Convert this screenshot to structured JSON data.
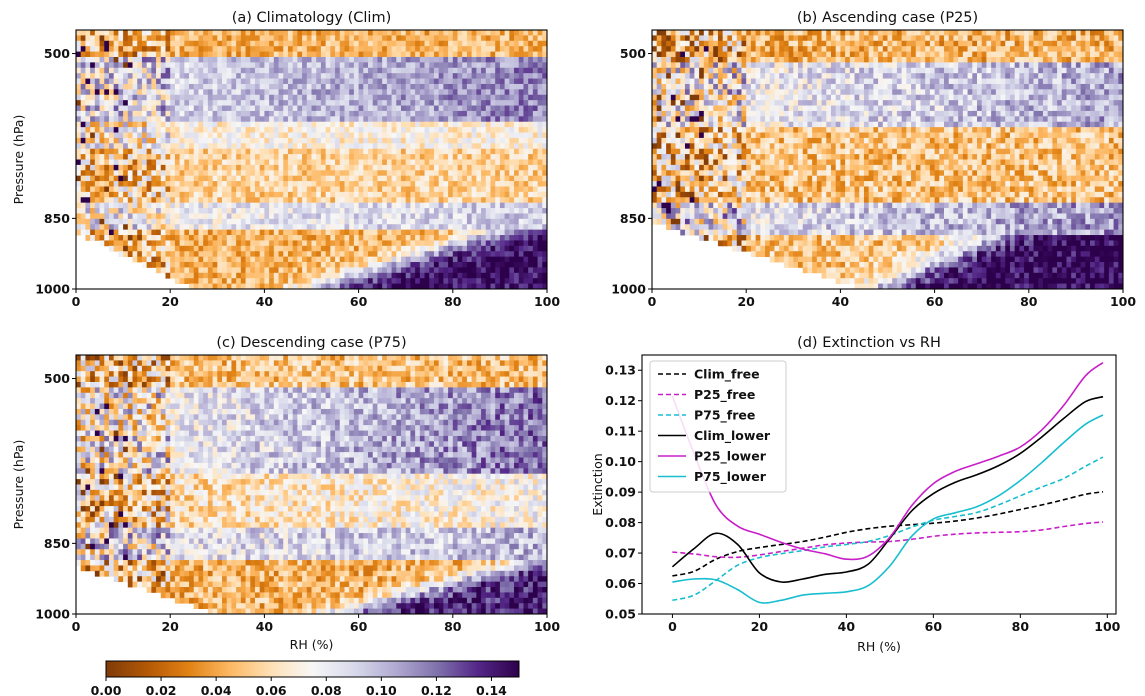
{
  "colorbar": {
    "colormap": "PuOr",
    "range": [
      0.0,
      0.15
    ],
    "tick_labels": [
      "0.00",
      "0.02",
      "0.04",
      "0.06",
      "0.08",
      "0.10",
      "0.12",
      "0.14"
    ],
    "tick_values": [
      0.0,
      0.02,
      0.04,
      0.06,
      0.08,
      0.1,
      0.12,
      0.14
    ]
  },
  "chart_data": [
    {
      "type": "heatmap",
      "title": "(a) Climatology (Clim)",
      "xlabel": "",
      "ylabel": "Pressure (hPa)",
      "xlim": [
        0,
        100
      ],
      "ylim": [
        1000,
        450
      ],
      "x_ticks": [
        "0",
        "20",
        "40",
        "60",
        "80",
        "100"
      ],
      "y_ticks": [
        "500",
        "850",
        "1000"
      ],
      "y_tick_values": [
        500,
        850,
        1000
      ],
      "noise": 0.018,
      "bands": [
        {
          "p": [
            450,
            510
          ],
          "value": 0.045
        },
        {
          "p": [
            510,
            640
          ],
          "value": 0.085,
          "rh_gradient": 0.03
        },
        {
          "p": [
            640,
            700
          ],
          "value": 0.07
        },
        {
          "p": [
            700,
            820
          ],
          "value": 0.055
        },
        {
          "p": [
            820,
            870
          ],
          "value": 0.075,
          "rh_gradient": 0.02
        },
        {
          "p": [
            870,
            1000
          ],
          "value": 0.045,
          "moist_value": 0.145,
          "moist_rh_start": [
            50,
            92
          ]
        }
      ],
      "empty_region": {
        "rh_max_at_1000": 25,
        "p_start": 880
      }
    },
    {
      "type": "heatmap",
      "title": "(b) Ascending case (P25)",
      "xlabel": "",
      "ylabel": "",
      "xlim": [
        0,
        100
      ],
      "ylim": [
        1000,
        450
      ],
      "x_ticks": [
        "0",
        "20",
        "40",
        "60",
        "80",
        "100"
      ],
      "y_ticks": [
        "500",
        "850",
        "1000"
      ],
      "y_tick_values": [
        500,
        850,
        1000
      ],
      "noise": 0.022,
      "bands": [
        {
          "p": [
            450,
            520
          ],
          "value": 0.045
        },
        {
          "p": [
            520,
            660
          ],
          "value": 0.075,
          "rh_gradient": 0.03
        },
        {
          "p": [
            660,
            820
          ],
          "value": 0.05
        },
        {
          "p": [
            820,
            880
          ],
          "value": 0.08,
          "rh_gradient": 0.03
        },
        {
          "p": [
            880,
            1000
          ],
          "value": 0.05,
          "moist_value": 0.15,
          "moist_rh_start": [
            48,
            75
          ]
        }
      ],
      "empty_region": {
        "rh_max_at_1000": 45,
        "p_start": 860
      }
    },
    {
      "type": "heatmap",
      "title": "(c) Descending case (P75)",
      "xlabel": "RH (%)",
      "ylabel": "Pressure (hPa)",
      "xlim": [
        0,
        100
      ],
      "ylim": [
        1000,
        450
      ],
      "x_ticks": [
        "0",
        "20",
        "40",
        "60",
        "80",
        "100"
      ],
      "y_ticks": [
        "500",
        "850",
        "1000"
      ],
      "y_tick_values": [
        500,
        850,
        1000
      ],
      "noise": 0.022,
      "bands": [
        {
          "p": [
            450,
            520
          ],
          "value": 0.05
        },
        {
          "p": [
            520,
            700
          ],
          "value": 0.07,
          "rh_gradient": 0.05
        },
        {
          "p": [
            700,
            820
          ],
          "value": 0.055,
          "rh_gradient": 0.02
        },
        {
          "p": [
            820,
            880
          ],
          "value": 0.08,
          "rh_gradient": 0.02
        },
        {
          "p": [
            880,
            1000
          ],
          "value": 0.045,
          "moist_value": 0.14,
          "moist_rh_start": [
            55,
            100
          ]
        }
      ],
      "empty_region": {
        "rh_max_at_1000": 30,
        "p_start": 900
      }
    },
    {
      "type": "line",
      "title": "(d) Extinction vs RH",
      "xlabel": "RH (%)",
      "ylabel": "Extinction",
      "xlim": [
        -7,
        102
      ],
      "ylim": [
        0.05,
        0.135
      ],
      "x_ticks": [
        "0",
        "20",
        "40",
        "60",
        "80",
        "100"
      ],
      "x_tick_values": [
        0,
        20,
        40,
        60,
        80,
        100
      ],
      "y_ticks": [
        "0.05",
        "0.06",
        "0.07",
        "0.08",
        "0.09",
        "0.10",
        "0.11",
        "0.12",
        "0.13"
      ],
      "y_tick_values": [
        0.05,
        0.06,
        0.07,
        0.08,
        0.09,
        0.1,
        0.11,
        0.12,
        0.13
      ],
      "x": [
        0,
        5,
        10,
        15,
        20,
        25,
        30,
        35,
        40,
        45,
        50,
        55,
        60,
        65,
        70,
        75,
        80,
        85,
        90,
        95,
        99
      ],
      "legend": "upper-left",
      "series": [
        {
          "name": "Clim_free",
          "color": "#000000",
          "dashed": true,
          "values": [
            0.0625,
            0.064,
            0.068,
            0.0705,
            0.0718,
            0.0728,
            0.0738,
            0.0752,
            0.0768,
            0.078,
            0.0788,
            0.0793,
            0.0798,
            0.0805,
            0.0815,
            0.0828,
            0.0843,
            0.0858,
            0.0875,
            0.0893,
            0.0901
          ]
        },
        {
          "name": "P25_free",
          "color": "#c81ec8",
          "dashed": true,
          "values": [
            0.0703,
            0.0697,
            0.0688,
            0.0686,
            0.0694,
            0.0705,
            0.0716,
            0.0727,
            0.0733,
            0.0736,
            0.0738,
            0.0745,
            0.0755,
            0.0762,
            0.0766,
            0.0768,
            0.077,
            0.0776,
            0.0787,
            0.0797,
            0.0802
          ]
        },
        {
          "name": "P75_free",
          "color": "#17becf",
          "dashed": true,
          "values": [
            0.0545,
            0.0562,
            0.061,
            0.066,
            0.0685,
            0.0698,
            0.0708,
            0.072,
            0.0728,
            0.0738,
            0.0758,
            0.0785,
            0.0808,
            0.082,
            0.0833,
            0.0858,
            0.0888,
            0.0917,
            0.0945,
            0.0985,
            0.1015
          ]
        },
        {
          "name": "Clim_lower",
          "color": "#000000",
          "dashed": false,
          "values": [
            0.0655,
            0.0715,
            0.0765,
            0.0728,
            0.0635,
            0.0605,
            0.0615,
            0.063,
            0.0638,
            0.0663,
            0.0748,
            0.0838,
            0.0895,
            0.0932,
            0.0957,
            0.0987,
            0.1027,
            0.1082,
            0.1142,
            0.1197,
            0.1213
          ]
        },
        {
          "name": "P25_lower",
          "color": "#c81ec8",
          "dashed": false,
          "values": [
            0.1215,
            0.1025,
            0.0858,
            0.0788,
            0.0762,
            0.0735,
            0.0713,
            0.0698,
            0.068,
            0.069,
            0.0752,
            0.0855,
            0.0928,
            0.0968,
            0.0993,
            0.1018,
            0.1048,
            0.1105,
            0.1185,
            0.1282,
            0.1325
          ]
        },
        {
          "name": "P75_lower",
          "color": "#17becf",
          "dashed": false,
          "values": [
            0.0605,
            0.0615,
            0.0612,
            0.058,
            0.0538,
            0.0545,
            0.0562,
            0.0568,
            0.0573,
            0.0593,
            0.0658,
            0.0755,
            0.0812,
            0.0832,
            0.0852,
            0.0888,
            0.0938,
            0.0998,
            0.1063,
            0.1123,
            0.1153
          ]
        }
      ]
    }
  ]
}
